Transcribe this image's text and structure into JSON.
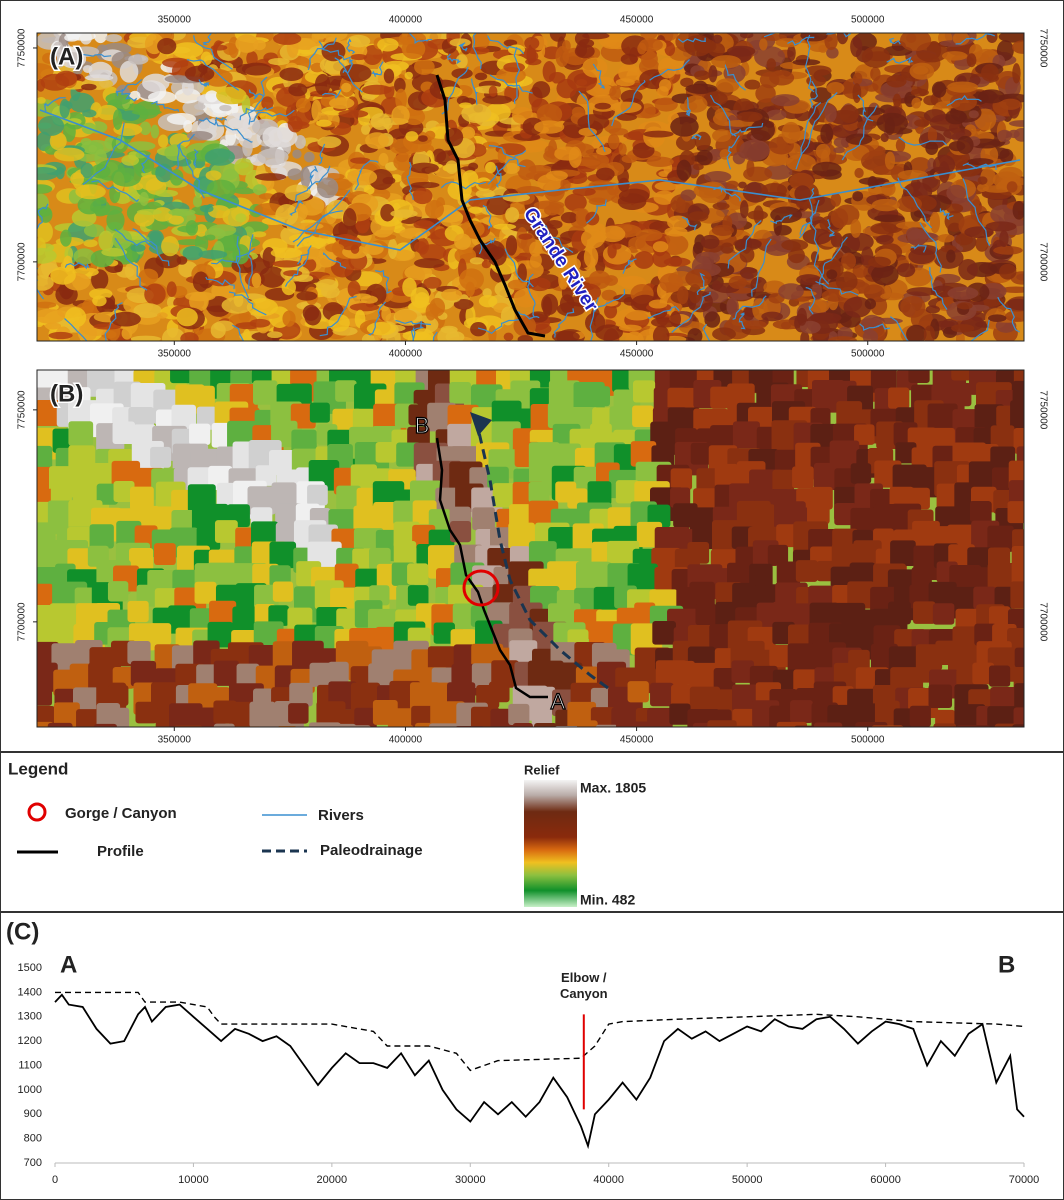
{
  "maps": [
    {
      "label": "(A)",
      "river_label": "Grande River",
      "xlim": [
        320300,
        533800
      ],
      "ylim": [
        7681500,
        7753500
      ],
      "xticks": [
        350000,
        400000,
        450000,
        500000
      ],
      "yticks": [
        7750000,
        7700000
      ]
    },
    {
      "label": "(B)",
      "profile_ends": [
        "B",
        "A"
      ],
      "xlim": [
        320300,
        533800
      ],
      "ylim": [
        7675200,
        7759400
      ],
      "xticks": [
        350000,
        400000,
        450000,
        500000
      ],
      "yticks": [
        7750000,
        7700000
      ]
    }
  ],
  "legend": {
    "title": "Legend",
    "items": [
      "Gorge / Canyon",
      "Profile",
      "Rivers",
      "Paleodrainage"
    ],
    "relief": {
      "title": "Relief",
      "max": "Max. 1805",
      "min": "Min. 482"
    }
  },
  "chart_data": {
    "type": "line",
    "panel_label": "(C)",
    "start_label": "A",
    "end_label": "B",
    "xlim": [
      0,
      70000
    ],
    "ylim": [
      700,
      1500
    ],
    "xticks": [
      0,
      10000,
      20000,
      30000,
      40000,
      50000,
      60000,
      70000
    ],
    "yticks": [
      700,
      800,
      900,
      1000,
      1100,
      1200,
      1300,
      1400,
      1500
    ],
    "grid": false,
    "series": [
      {
        "name": "Profile",
        "color": "#000000",
        "dash": false,
        "x": [
          0,
          500,
          1000,
          2000,
          3000,
          4000,
          5000,
          6000,
          6500,
          7000,
          8000,
          9000,
          10000,
          11000,
          12000,
          13000,
          14000,
          15000,
          16000,
          17000,
          18000,
          19000,
          20000,
          21000,
          22000,
          23000,
          24000,
          25000,
          26000,
          27000,
          28000,
          29000,
          30000,
          31000,
          32000,
          33000,
          34000,
          35000,
          36000,
          37000,
          38000,
          38500,
          39000,
          40000,
          41000,
          42000,
          43000,
          44000,
          45000,
          46000,
          47000,
          48000,
          49000,
          50000,
          51000,
          52000,
          53000,
          54000,
          55000,
          56000,
          57000,
          58000,
          59000,
          60000,
          61000,
          62000,
          63000,
          64000,
          65000,
          66000,
          67000,
          68000,
          69000,
          69500,
          70000
        ],
        "values": [
          1360,
          1390,
          1350,
          1340,
          1250,
          1190,
          1200,
          1310,
          1340,
          1280,
          1340,
          1350,
          1300,
          1250,
          1200,
          1250,
          1230,
          1200,
          1220,
          1180,
          1100,
          1020,
          1090,
          1150,
          1110,
          1110,
          1090,
          1150,
          1060,
          1120,
          1000,
          920,
          870,
          950,
          900,
          950,
          890,
          950,
          1050,
          970,
          850,
          770,
          900,
          960,
          1030,
          960,
          1050,
          1200,
          1250,
          1210,
          1240,
          1200,
          1230,
          1260,
          1240,
          1290,
          1260,
          1250,
          1290,
          1300,
          1250,
          1190,
          1240,
          1280,
          1270,
          1250,
          1100,
          1200,
          1140,
          1230,
          1270,
          1030,
          1140,
          920,
          890
        ]
      },
      {
        "name": "Paleodrainage",
        "color": "#000000",
        "dash": true,
        "x": [
          0,
          6000,
          6500,
          9000,
          11000,
          11500,
          12000,
          20000,
          23000,
          24000,
          27000,
          29000,
          30000,
          31000,
          32000,
          38000,
          39000,
          40000,
          41000,
          45000,
          50000,
          55000,
          58000,
          62000,
          68000,
          70000
        ],
        "values": [
          1400,
          1400,
          1360,
          1360,
          1340,
          1300,
          1270,
          1270,
          1240,
          1180,
          1180,
          1150,
          1080,
          1100,
          1120,
          1130,
          1180,
          1270,
          1280,
          1290,
          1300,
          1310,
          1300,
          1280,
          1270,
          1260
        ]
      }
    ],
    "annotations": [
      {
        "lines": [
          "Elbow /",
          "Canyon"
        ],
        "x": 38200,
        "y": [
          920,
          1310
        ],
        "color": "#e00000"
      }
    ]
  }
}
